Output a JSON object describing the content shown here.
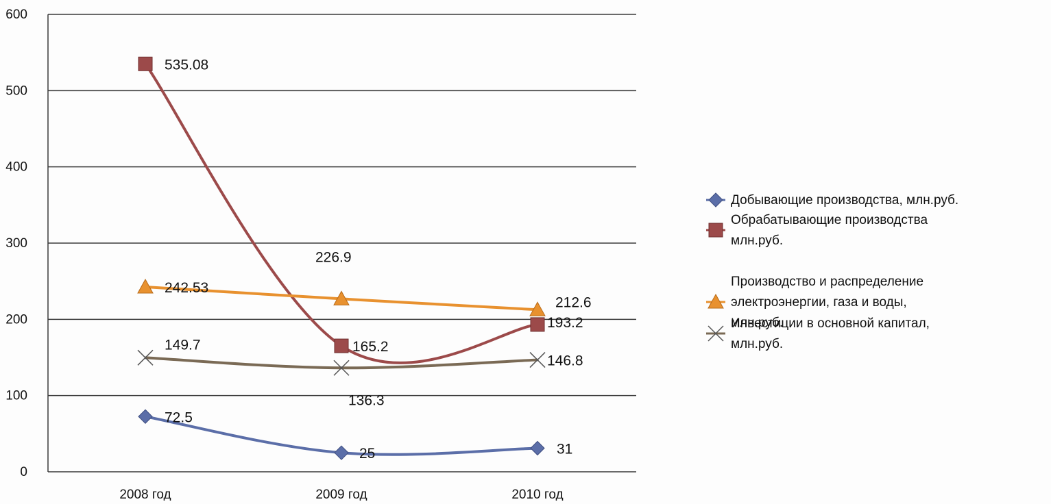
{
  "chart_data": {
    "type": "line",
    "categories": [
      "2008 год",
      "2009 год",
      "2010 год"
    ],
    "ylim": [
      0,
      600
    ],
    "yticks": [
      0,
      100,
      200,
      300,
      400,
      500,
      600
    ],
    "grid": true,
    "legend_position": "right",
    "series": [
      {
        "name": "Добывающие производства, млн.руб.",
        "legend_lines": [
          "Добывающие производства, млн.руб."
        ],
        "values": [
          72.5,
          25,
          31
        ],
        "labels": [
          "72.5",
          "25",
          "31"
        ],
        "color": "#5b6ea8",
        "marker": "diamond"
      },
      {
        "name": "Обрабатывающие производства млн.руб.",
        "legend_lines": [
          "Обрабатывающие производства",
          "млн.руб."
        ],
        "values": [
          535.08,
          165.2,
          193.2
        ],
        "labels": [
          "535.08",
          "165.2",
          "193.2"
        ],
        "color": "#9c4a4a",
        "marker": "square"
      },
      {
        "name": "Производство и распределение электроэнергии, газа и воды, млн.руб.",
        "legend_lines": [
          "Производство и распределение",
          "электроэнергии, газа и воды,",
          "млн.руб."
        ],
        "values": [
          242.53,
          226.9,
          212.6
        ],
        "labels": [
          "242.53",
          "226.9",
          "212.6"
        ],
        "color": "#e8912f",
        "marker": "triangle"
      },
      {
        "name": "Инвестиции в основной капитал, млн.руб.",
        "legend_lines": [
          "Инвестиции в основной капитал,",
          "млн.руб."
        ],
        "values": [
          149.7,
          136.3,
          146.8
        ],
        "labels": [
          "149.7",
          "136.3",
          "146.8"
        ],
        "color": "#7a6a55",
        "marker": "cross"
      }
    ]
  }
}
